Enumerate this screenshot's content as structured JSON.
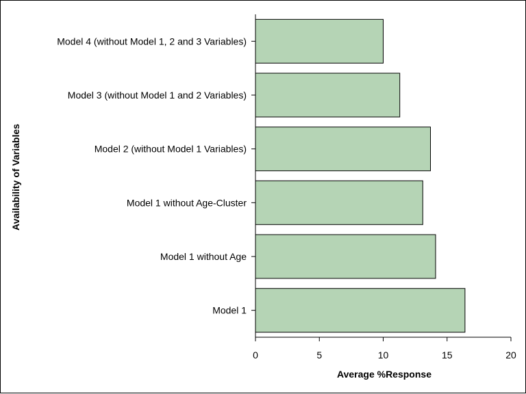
{
  "chart_data": {
    "type": "bar",
    "orientation": "horizontal",
    "title": "",
    "xlabel": "Average %Response",
    "ylabel": "Availability of Variables",
    "categories": [
      "Model 4 (without Model 1, 2 and 3 Variables)",
      "Model 3 (without Model 1 and 2 Variables)",
      "Model 2 (without Model 1 Variables)",
      "Model 1 without Age-Cluster",
      "Model 1 without Age",
      "Model 1"
    ],
    "values": [
      10.0,
      11.3,
      13.7,
      13.1,
      14.1,
      16.4
    ],
    "xlim": [
      0,
      20
    ],
    "xticks": [
      0,
      5,
      10,
      15,
      20
    ],
    "grid": false,
    "legend": "none",
    "bar_fill": "#b5d4b5",
    "bar_stroke": "#000000"
  }
}
